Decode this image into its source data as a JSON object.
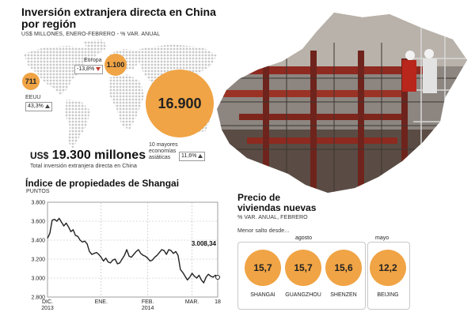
{
  "fdi": {
    "title_line1": "Inversión extranjera directa en China",
    "title_line2": "por región",
    "subtitle": "US$ MILLONES, ENERO-FEBRERO - % VAR. ANUAL",
    "eeuu": {
      "label": "EEUU",
      "value": "711",
      "var": "43,3%",
      "direction": "up"
    },
    "europa": {
      "label": "Europa",
      "value": "1.100",
      "var": "-13,8%",
      "direction": "down"
    },
    "asia": {
      "label_l1": "10 mayores",
      "label_l2": "economías",
      "label_l3": "asiáticas",
      "value": "16.900",
      "var": "11,6%",
      "direction": "up"
    },
    "total_prefix": "US$",
    "total_value": "19.300 millones",
    "total_caption": "Total inversión extranjera directa en China",
    "bubble_color": "#f0a445",
    "map_color": "#c9c9c9"
  },
  "chart_data": {
    "type": "line",
    "title": "Índice de propiedades de Shangai",
    "ylabel": "PUNTOS",
    "ylim": [
      2800,
      3800
    ],
    "yticks": [
      "3.800",
      "3.600",
      "3.400",
      "3.200",
      "3.000",
      "2.800"
    ],
    "ytick_values": [
      3800,
      3600,
      3400,
      3200,
      3000,
      2800
    ],
    "xticks": [
      {
        "label": "DIC.",
        "label2": "2013",
        "x": 0
      },
      {
        "label": "ENE.",
        "label2": "",
        "x": 23
      },
      {
        "label": "FEB.",
        "label2": "2014",
        "x": 43
      },
      {
        "label": "MAR.",
        "label2": "",
        "x": 62
      },
      {
        "label": "18",
        "label2": "",
        "x": 73
      }
    ],
    "last_value_label": "3.008,34",
    "x": [
      0,
      1,
      2,
      3,
      4,
      5,
      6,
      7,
      8,
      9,
      10,
      11,
      12,
      13,
      14,
      15,
      16,
      17,
      18,
      19,
      20,
      21,
      22,
      23,
      24,
      25,
      26,
      27,
      28,
      29,
      30,
      31,
      32,
      33,
      34,
      35,
      36,
      37,
      38,
      39,
      40,
      41,
      42,
      43,
      44,
      45,
      46,
      47,
      48,
      49,
      50,
      51,
      52,
      53,
      54,
      55,
      56,
      57,
      58,
      59,
      60,
      61,
      62,
      63,
      64,
      65,
      66,
      67,
      68,
      69,
      70,
      71,
      72,
      73
    ],
    "values": [
      3420,
      3470,
      3610,
      3620,
      3600,
      3630,
      3590,
      3550,
      3580,
      3540,
      3490,
      3510,
      3450,
      3440,
      3400,
      3380,
      3390,
      3360,
      3280,
      3250,
      3260,
      3270,
      3250,
      3220,
      3180,
      3210,
      3170,
      3160,
      3190,
      3200,
      3150,
      3160,
      3200,
      3240,
      3300,
      3230,
      3220,
      3250,
      3280,
      3300,
      3260,
      3240,
      3230,
      3210,
      3180,
      3190,
      3220,
      3240,
      3270,
      3300,
      3290,
      3250,
      3300,
      3290,
      3260,
      3280,
      3240,
      3090,
      3060,
      3020,
      2980,
      3010,
      3050,
      3020,
      3000,
      3030,
      2980,
      2950,
      3010,
      3040,
      3020,
      3010,
      3030,
      3008
    ],
    "line_color": "#222222",
    "grid": true
  },
  "housing": {
    "title_l1": "Precio de",
    "title_l2": "viviendas nuevas",
    "subtitle": "% VAR. ANUAL, FEBRERO",
    "caption": "Menor salto desde...",
    "group1_label": "agosto",
    "group2_label": "mayo",
    "cities": [
      {
        "name": "SHANGAI",
        "value": "15,7"
      },
      {
        "name": "GUANGZHOU",
        "value": "15,7"
      },
      {
        "name": "SHENZEN",
        "value": "15,6"
      },
      {
        "name": "BEIJING",
        "value": "12,2"
      }
    ],
    "circle_color": "#f0a445"
  }
}
